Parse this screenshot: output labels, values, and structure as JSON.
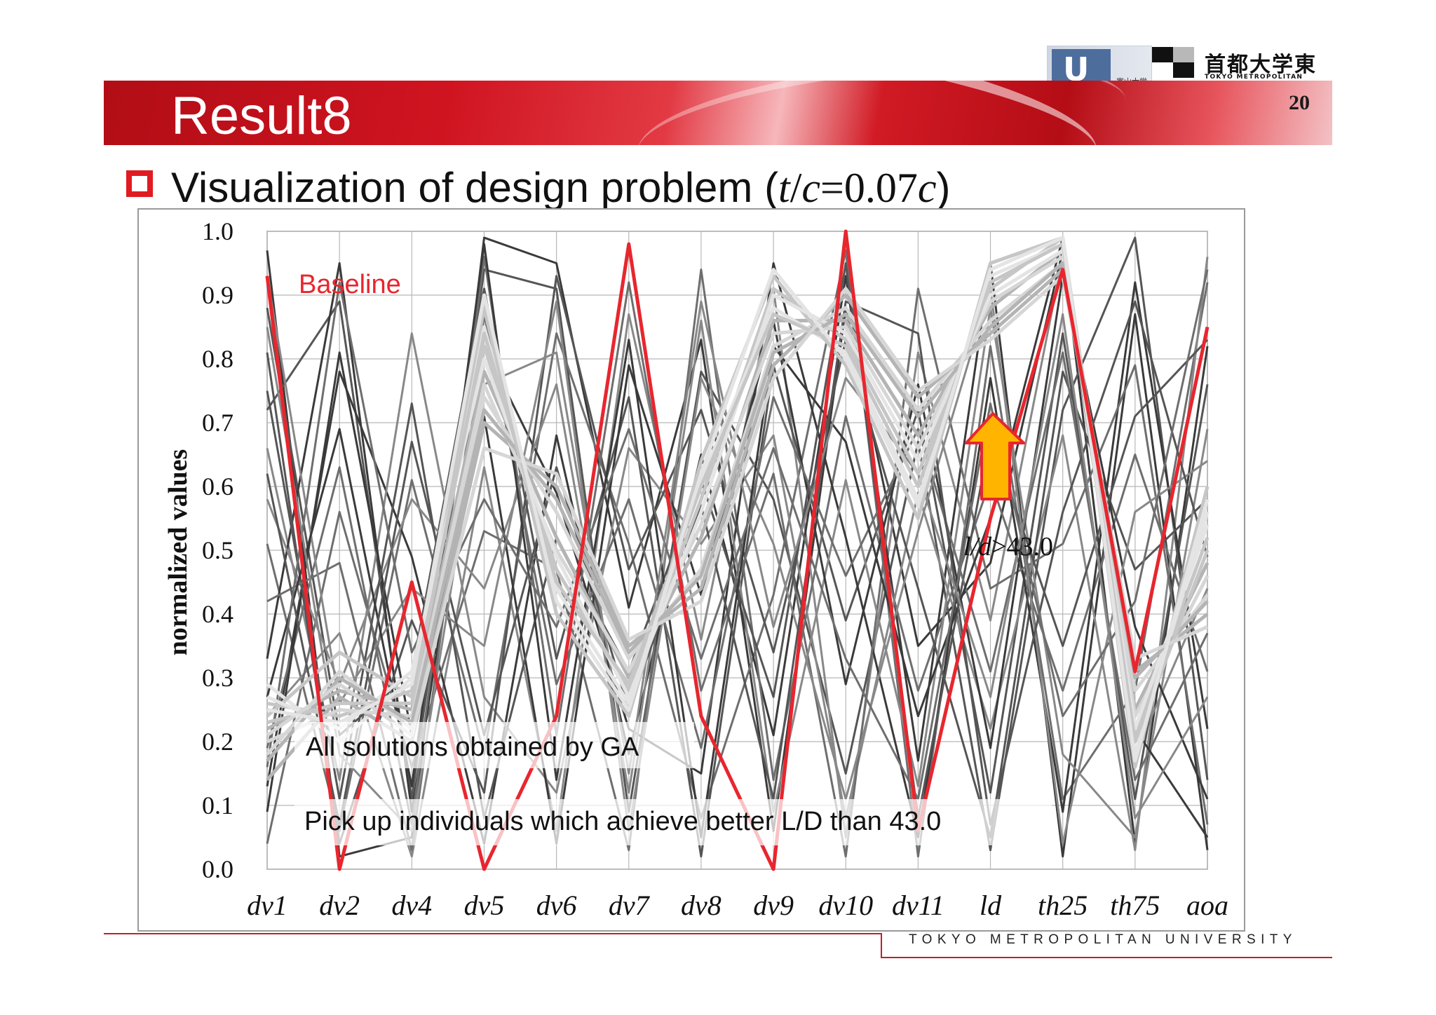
{
  "slide": {
    "title": "Result8",
    "page_number": "20",
    "subtitle_text": "Visualization of design problem (",
    "subtitle_math_t": "t",
    "subtitle_math_slash": "/",
    "subtitle_math_c": "c",
    "subtitle_math_eq": "=0.07",
    "subtitle_math_c2": "c",
    "subtitle_close": ")",
    "footer": "TOKYO METROPOLITAN UNIVERSITY"
  },
  "logos": {
    "toyama_text": "富山大学",
    "tmu_jp": "首都大学東京",
    "tmu_en": "TOKYO METROPOLITAN UNIVERSITY"
  },
  "chart_data": {
    "type": "line",
    "subtype": "parallel-coordinates",
    "categories": [
      "dv1",
      "dv2",
      "dv4",
      "dv5",
      "dv6",
      "dv7",
      "dv8",
      "dv9",
      "dv10",
      "dv11",
      "ld",
      "th25",
      "th75",
      "aoa"
    ],
    "ylabel": "normalized values",
    "ylim": [
      0.0,
      1.0
    ],
    "yticks": [
      "1.0",
      "0.9",
      "0.8",
      "0.7",
      "0.6",
      "0.5",
      "0.4",
      "0.3",
      "0.2",
      "0.1",
      "0.0"
    ],
    "grid": true,
    "series": [
      {
        "name": "Baseline",
        "color": "#e8262e",
        "values": [
          0.93,
          0.0,
          0.45,
          0.0,
          0.24,
          0.98,
          0.24,
          0.0,
          1.0,
          0.06,
          0.55,
          0.94,
          0.31,
          0.85
        ]
      }
    ],
    "solution_groups": [
      {
        "name": "All solutions obtained by GA",
        "colors": [
          "#3a3a3a",
          "#555555",
          "#6e6e6e",
          "#888888"
        ],
        "lines": [
          [
            0.97,
            0.02,
            0.05,
            0.99,
            0.95,
            0.41,
            0.83,
            0.06,
            0.88,
            0.35,
            0.48,
            0.97,
            0.04,
            0.82
          ],
          [
            0.72,
            0.89,
            0.11,
            0.94,
            0.91,
            0.09,
            0.78,
            0.58,
            0.15,
            0.67,
            0.03,
            0.72,
            0.99,
            0.14
          ],
          [
            0.51,
            0.06,
            0.61,
            0.18,
            0.84,
            0.51,
            0.08,
            0.43,
            0.97,
            0.02,
            0.82,
            0.11,
            0.28,
            0.92
          ],
          [
            0.24,
            0.37,
            0.02,
            0.63,
            0.06,
            0.87,
            0.36,
            0.91,
            0.05,
            0.81,
            0.39,
            0.96,
            0.18,
            0.44
          ],
          [
            0.13,
            0.78,
            0.49,
            0.04,
            0.68,
            0.18,
            0.65,
            0.21,
            0.93,
            0.17,
            0.95,
            0.02,
            0.87,
            0.03
          ],
          [
            0.88,
            0.21,
            0.31,
            0.91,
            0.33,
            0.74,
            0.02,
            0.79,
            0.39,
            0.72,
            0.12,
            0.84,
            0.11,
            0.76
          ],
          [
            0.04,
            0.56,
            0.16,
            0.53,
            0.47,
            0.03,
            0.94,
            0.14,
            0.71,
            0.28,
            0.61,
            0.28,
            0.65,
            0.31
          ],
          [
            0.66,
            0.14,
            0.84,
            0.27,
            0.12,
            0.66,
            0.51,
            0.68,
            0.08,
            0.59,
            0.22,
            0.68,
            0.03,
            0.96
          ],
          [
            0.33,
            0.95,
            0.09,
            0.82,
            0.59,
            0.22,
            0.15,
            0.95,
            0.52,
            0.05,
            0.77,
            0.09,
            0.92,
            0.22
          ],
          [
            0.81,
            0.04,
            0.39,
            0.12,
            0.93,
            0.47,
            0.72,
            0.34,
            0.83,
            0.44,
            0.05,
            0.78,
            0.47,
            0.58
          ],
          [
            0.19,
            0.63,
            0.07,
            0.96,
            0.21,
            0.92,
            0.28,
            0.62,
            0.02,
            0.91,
            0.44,
            0.51,
            0.79,
            0.07
          ],
          [
            0.58,
            0.29,
            0.58,
            0.44,
            0.76,
            0.12,
            0.86,
            0.09,
            0.61,
            0.13,
            0.88,
            0.18,
            0.05,
            0.69
          ],
          [
            0.09,
            0.81,
            0.21,
            0.71,
            0.04,
            0.79,
            0.43,
            0.86,
            0.29,
            0.76,
            0.19,
            0.93,
            0.38,
            0.11
          ],
          [
            0.75,
            0.11,
            0.73,
            0.08,
            0.52,
            0.31,
            0.61,
            0.27,
            0.95,
            0.08,
            0.68,
            0.35,
            0.71,
            0.83
          ],
          [
            0.42,
            0.48,
            0.03,
            0.87,
            0.29,
            0.58,
            0.19,
            0.74,
            0.46,
            0.69,
            0.31,
            0.81,
            0.14,
            0.37
          ],
          [
            0.93,
            0.26,
            0.44,
            0.35,
            0.89,
            0.06,
            0.77,
            0.51,
            0.11,
            0.53,
            0.91,
            0.04,
            0.56,
            0.64
          ],
          [
            0.27,
            0.69,
            0.13,
            0.98,
            0.14,
            0.83,
            0.05,
            0.82,
            0.67,
            0.24,
            0.55,
            0.99,
            0.22,
            0.05
          ],
          [
            0.62,
            0.07,
            0.67,
            0.21,
            0.63,
            0.25,
            0.57,
            0.11,
            0.89,
            0.84,
            0.07,
            0.56,
            0.89,
            0.49
          ],
          [
            0.16,
            0.92,
            0.34,
            0.58,
            0.38,
            0.69,
            0.33,
            0.66,
            0.33,
            0.11,
            0.73,
            0.24,
            0.42,
            0.94
          ],
          [
            0.85,
            0.18,
            0.06,
            0.76,
            0.81,
            0.15,
            0.89,
            0.38,
            0.77,
            0.62,
            0.27,
            0.87,
            0.08,
            0.27
          ]
        ]
      },
      {
        "name": "Pick up individuals which achieve better  L/D than 43.0",
        "colors": [
          "#b4b4b4",
          "#c6c6c6",
          "#d6d6d6",
          "#e4e4e4"
        ],
        "lines": [
          [
            0.22,
            0.28,
            0.25,
            0.78,
            0.52,
            0.3,
            0.52,
            0.86,
            0.86,
            0.68,
            0.88,
            0.97,
            0.25,
            0.48
          ],
          [
            0.26,
            0.24,
            0.28,
            0.82,
            0.47,
            0.28,
            0.58,
            0.91,
            0.83,
            0.62,
            0.91,
            0.99,
            0.21,
            0.52
          ],
          [
            0.18,
            0.31,
            0.22,
            0.74,
            0.56,
            0.33,
            0.47,
            0.82,
            0.88,
            0.72,
            0.86,
            0.95,
            0.28,
            0.43
          ],
          [
            0.29,
            0.2,
            0.3,
            0.85,
            0.44,
            0.26,
            0.61,
            0.88,
            0.81,
            0.58,
            0.93,
            0.98,
            0.18,
            0.56
          ],
          [
            0.14,
            0.27,
            0.2,
            0.7,
            0.6,
            0.35,
            0.44,
            0.79,
            0.9,
            0.74,
            0.84,
            0.94,
            0.31,
            0.4
          ],
          [
            0.24,
            0.34,
            0.27,
            0.88,
            0.4,
            0.24,
            0.64,
            0.93,
            0.79,
            0.55,
            0.95,
            0.99,
            0.16,
            0.6
          ],
          [
            0.2,
            0.25,
            0.24,
            0.76,
            0.5,
            0.31,
            0.54,
            0.84,
            0.85,
            0.66,
            0.89,
            0.96,
            0.24,
            0.46
          ],
          [
            0.27,
            0.22,
            0.31,
            0.8,
            0.49,
            0.27,
            0.56,
            0.9,
            0.84,
            0.64,
            0.9,
            0.97,
            0.22,
            0.54
          ],
          [
            0.17,
            0.3,
            0.23,
            0.72,
            0.58,
            0.34,
            0.46,
            0.81,
            0.87,
            0.71,
            0.85,
            0.95,
            0.3,
            0.42
          ],
          [
            0.23,
            0.26,
            0.26,
            0.84,
            0.45,
            0.29,
            0.6,
            0.87,
            0.82,
            0.6,
            0.92,
            0.98,
            0.2,
            0.5
          ],
          [
            0.21,
            0.29,
            0.21,
            0.66,
            0.62,
            0.36,
            0.42,
            0.77,
            0.91,
            0.75,
            0.83,
            0.93,
            0.33,
            0.38
          ],
          [
            0.25,
            0.23,
            0.29,
            0.9,
            0.42,
            0.25,
            0.62,
            0.94,
            0.8,
            0.57,
            0.94,
            0.99,
            0.17,
            0.58
          ]
        ]
      }
    ],
    "annotations": [
      {
        "name": "baseline_label",
        "text": "Baseline",
        "color": "#e8262e"
      },
      {
        "name": "ld_threshold",
        "text_ital": "l/d",
        "text_rest": ">43.0"
      },
      {
        "name": "ga_label",
        "text": "All solutions obtained by GA"
      },
      {
        "name": "pick_label",
        "text": "Pick up individuals which achieve better  L/D than 43.0"
      }
    ],
    "arrow": {
      "fill": "#ffb400",
      "stroke": "#e8262e"
    }
  }
}
